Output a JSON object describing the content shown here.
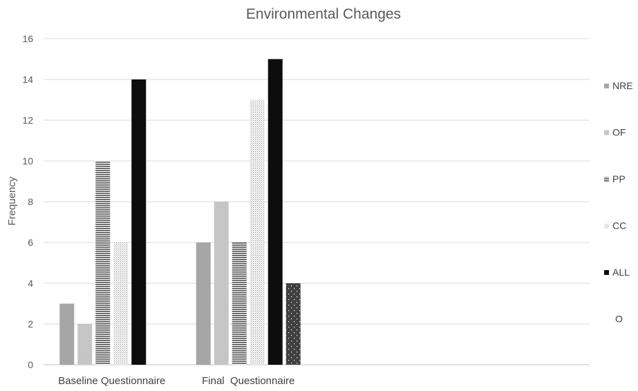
{
  "chart_data": {
    "type": "bar",
    "title": "Environmental Changes",
    "xlabel": "",
    "ylabel": "Frequency",
    "ylim": [
      0,
      16
    ],
    "yticks": [
      0,
      2,
      4,
      6,
      8,
      10,
      12,
      14,
      16
    ],
    "categories": [
      "Baseline Questionnaire",
      "Final  Questionnaire",
      "",
      ""
    ],
    "grid": true,
    "legend_position": "right",
    "series": [
      {
        "name": "NRE",
        "values": [
          3,
          6,
          null,
          null
        ],
        "color": "#a6a6a6",
        "pattern": "solid-gray"
      },
      {
        "name": "OF",
        "values": [
          2,
          8,
          null,
          null
        ],
        "color": "#bfbfbf",
        "pattern": "crosshatch"
      },
      {
        "name": "PP",
        "values": [
          10,
          6,
          null,
          null
        ],
        "color": "#595959",
        "pattern": "horizontal-stripes"
      },
      {
        "name": "CC",
        "values": [
          6,
          13,
          null,
          null
        ],
        "color": "#a6a6a6",
        "pattern": "dots"
      },
      {
        "name": "ALL",
        "values": [
          14,
          15,
          null,
          null
        ],
        "color": "#0d0d0d",
        "pattern": "solid-black"
      },
      {
        "name": "O",
        "values": [
          0,
          4,
          null,
          null
        ],
        "color": "#404040",
        "pattern": "dark-sparse-dots"
      }
    ]
  }
}
